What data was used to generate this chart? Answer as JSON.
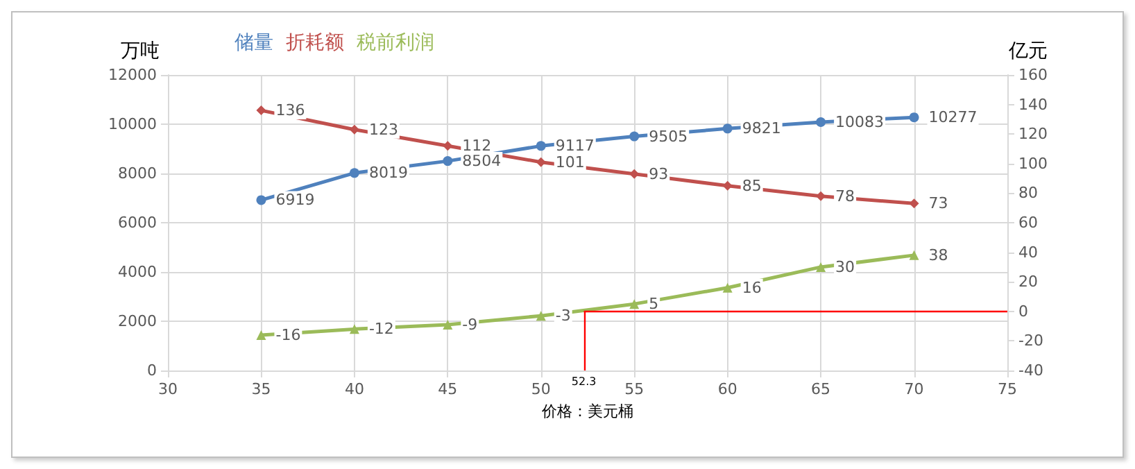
{
  "chart_data": {
    "type": "line",
    "x": [
      35,
      40,
      45,
      50,
      55,
      60,
      65,
      70
    ],
    "series": [
      {
        "name": "储量",
        "color": "#4f81bd",
        "marker": "circle",
        "values": [
          6919,
          8019,
          8504,
          9117,
          9505,
          9821,
          10083,
          10277
        ]
      },
      {
        "name": "折耗额",
        "color": "#c0504d",
        "marker": "diamond",
        "axis": "y2",
        "values": [
          136,
          123,
          112,
          101,
          93,
          85,
          78,
          73
        ]
      },
      {
        "name": "税前利润",
        "color": "#9bbb59",
        "marker": "triangle",
        "axis": "y2",
        "values": [
          -16,
          -12,
          -9,
          -3,
          5,
          16,
          30,
          38
        ]
      }
    ],
    "xlabel": "价格：美元桶",
    "ylabel": "万吨",
    "y2label": "亿元",
    "xlim": [
      30,
      75
    ],
    "xticks": [
      30,
      35,
      40,
      45,
      50,
      55,
      60,
      65,
      70,
      75
    ],
    "ylim": [
      0,
      12000
    ],
    "yticks": [
      0,
      2000,
      4000,
      6000,
      8000,
      10000,
      12000
    ],
    "y2lim": [
      -40,
      160
    ],
    "y2ticks": [
      -40,
      -20,
      0,
      20,
      40,
      60,
      80,
      100,
      120,
      140,
      160
    ],
    "ref_lines": [
      {
        "axis": "x",
        "value": 52.3,
        "label": "52.3",
        "color": "#ff0000"
      },
      {
        "axis": "y2",
        "value": 0,
        "color": "#ff0000"
      }
    ],
    "data_labels": true,
    "grid": true,
    "legend": "top left",
    "line_style": "solid"
  }
}
